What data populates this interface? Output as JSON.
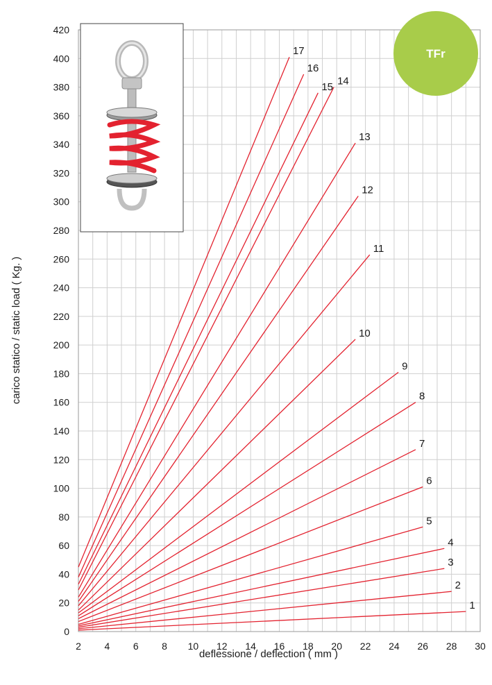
{
  "badge": {
    "label": "TFr",
    "color": "#a8cc4a"
  },
  "product_photo": {
    "icon": "spring-hanger-icon",
    "spring_color": "#e3222f"
  },
  "chart_data": {
    "type": "line",
    "xlabel": "deflessione / deflection ( mm )",
    "ylabel": "carico statico / static load ( Kg. )",
    "xlim": [
      2,
      30
    ],
    "ylim": [
      0,
      420
    ],
    "xticks": [
      2,
      4,
      6,
      8,
      10,
      12,
      14,
      16,
      18,
      20,
      22,
      24,
      26,
      28,
      30
    ],
    "yticks": [
      0,
      20,
      40,
      60,
      80,
      100,
      120,
      140,
      160,
      180,
      200,
      220,
      240,
      260,
      280,
      300,
      320,
      340,
      360,
      380,
      400,
      420
    ],
    "grid": true,
    "line_color": "#e3222f",
    "series": [
      {
        "name": "1",
        "x": [
          2,
          29.0
        ],
        "y": [
          1,
          14
        ]
      },
      {
        "name": "2",
        "x": [
          2,
          28.0
        ],
        "y": [
          2,
          28
        ]
      },
      {
        "name": "3",
        "x": [
          2,
          27.5
        ],
        "y": [
          3,
          44
        ]
      },
      {
        "name": "4",
        "x": [
          2,
          27.5
        ],
        "y": [
          4,
          58
        ]
      },
      {
        "name": "5",
        "x": [
          2,
          26.0
        ],
        "y": [
          5,
          73
        ]
      },
      {
        "name": "6",
        "x": [
          2,
          26.0
        ],
        "y": [
          7,
          101
        ]
      },
      {
        "name": "7",
        "x": [
          2,
          25.5
        ],
        "y": [
          9,
          127
        ]
      },
      {
        "name": "8",
        "x": [
          2,
          25.5
        ],
        "y": [
          11,
          160
        ]
      },
      {
        "name": "9",
        "x": [
          2,
          24.3
        ],
        "y": [
          13,
          181
        ]
      },
      {
        "name": "10",
        "x": [
          2,
          21.3
        ],
        "y": [
          15,
          204
        ]
      },
      {
        "name": "11",
        "x": [
          2,
          22.3
        ],
        "y": [
          18,
          263
        ]
      },
      {
        "name": "12",
        "x": [
          2,
          21.5
        ],
        "y": [
          21,
          304
        ]
      },
      {
        "name": "13",
        "x": [
          2,
          21.3
        ],
        "y": [
          24,
          341
        ]
      },
      {
        "name": "14",
        "x": [
          2,
          19.8
        ],
        "y": [
          29,
          380
        ]
      },
      {
        "name": "15",
        "x": [
          2,
          18.7
        ],
        "y": [
          33,
          376
        ]
      },
      {
        "name": "16",
        "x": [
          2,
          17.7
        ],
        "y": [
          38,
          389
        ]
      },
      {
        "name": "17",
        "x": [
          2,
          16.7
        ],
        "y": [
          45,
          401
        ]
      }
    ]
  }
}
